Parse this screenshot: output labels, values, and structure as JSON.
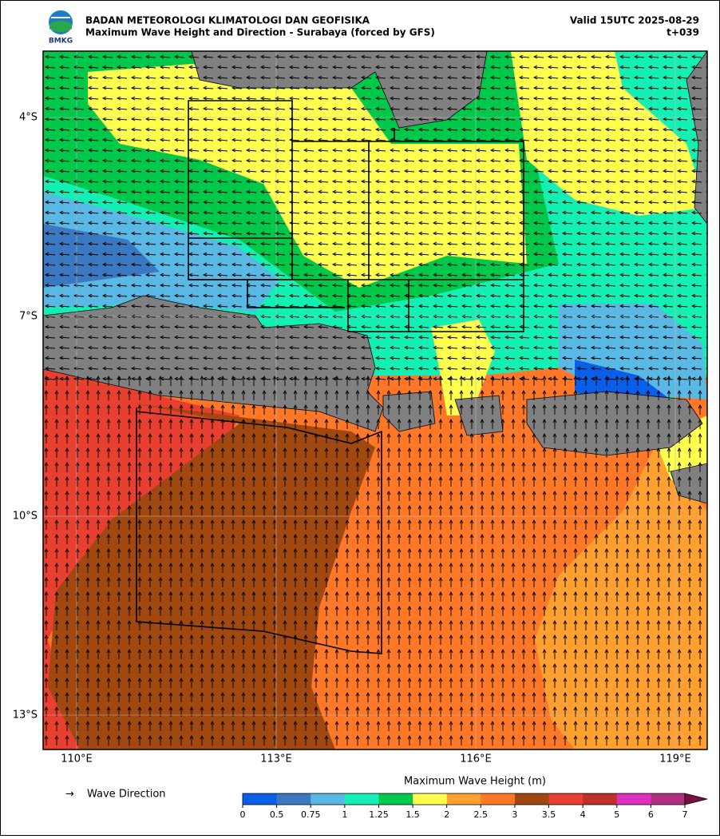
{
  "header": {
    "title": "BADAN METEOROLOGI KLIMATOLOGI DAN GEOFISIKA",
    "subtitle": "Maximum Wave Height and Direction - Surabaya (forced by GFS)",
    "valid": "Valid 15UTC 2025-08-29",
    "lead": "t+039",
    "logo": "BMKG"
  },
  "map": {
    "lat_labels": [
      "4°S",
      "7°S",
      "10°S",
      "13°S"
    ],
    "lon_labels": [
      "110°E",
      "113°E",
      "116°E",
      "119°E"
    ]
  },
  "legend": {
    "arrow": "→",
    "label": "Wave Direction"
  },
  "colorbar": {
    "title": "Maximum Wave Height (m)",
    "ticks": [
      0,
      0.5,
      0.75,
      1,
      1.25,
      1.5,
      2,
      2.5,
      3,
      3.5,
      4,
      5,
      6,
      7
    ],
    "colors": [
      "#0a5fe8",
      "#3a78c2",
      "#5ab8e4",
      "#14f0b4",
      "#00c84a",
      "#ffff50",
      "#ffa030",
      "#ff7828",
      "#a04810",
      "#e84030",
      "#c03028",
      "#e030c0",
      "#b03080"
    ],
    "extend_color": "#7a1040"
  }
}
